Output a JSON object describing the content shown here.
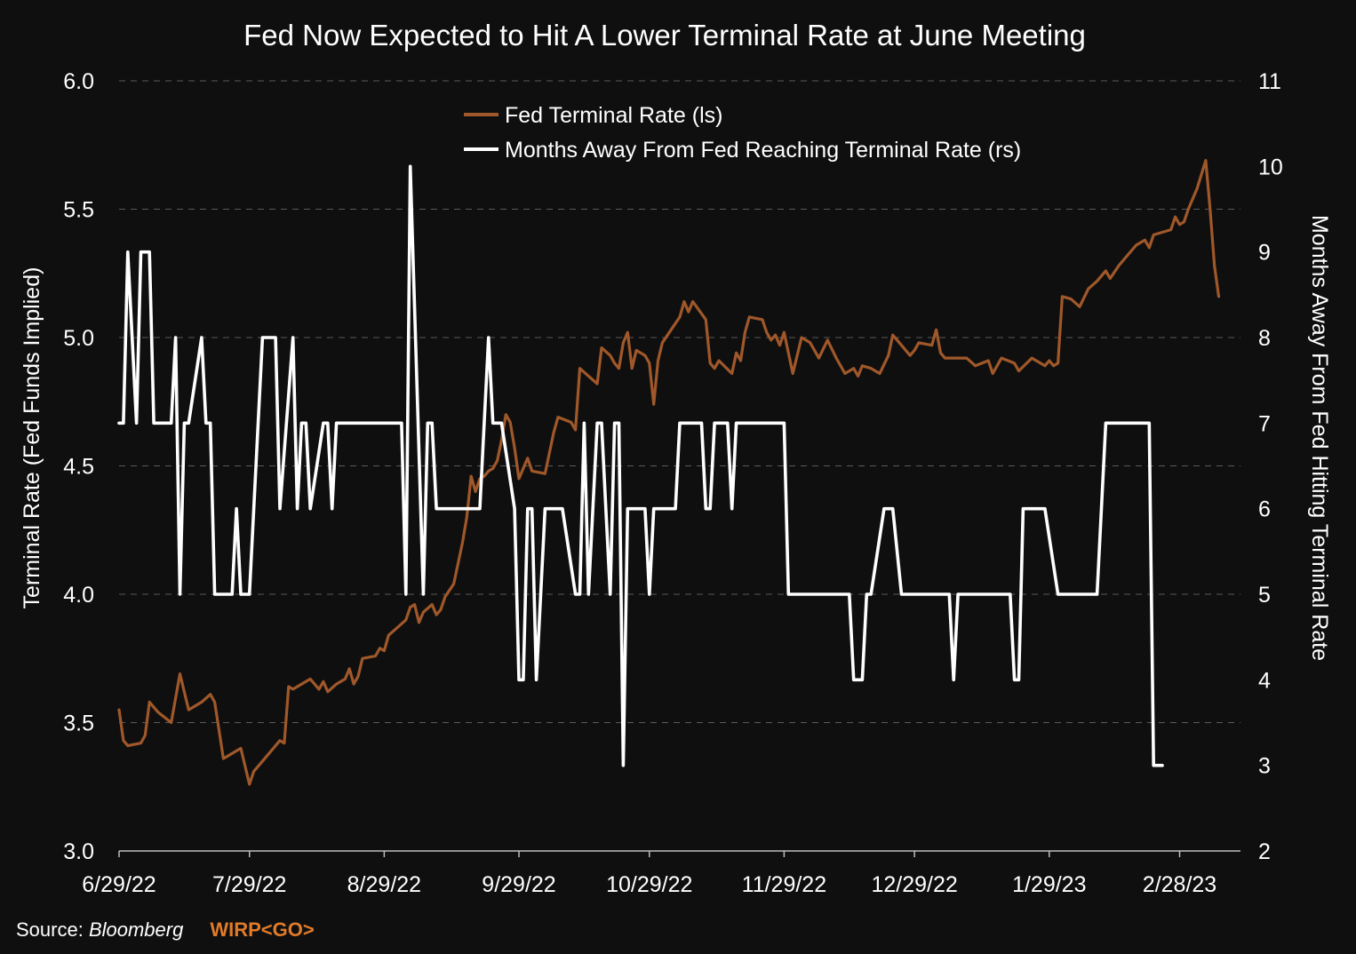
{
  "colors": {
    "background": "#0f0f0f",
    "grid": "#5a5a5a",
    "text": "#ffffff",
    "terminal_rate_line": "#a0582a",
    "months_line": "#ffffff",
    "ticker": "#e07b2a"
  },
  "footer": {
    "source_label": "Source: ",
    "source_name": "Bloomberg",
    "ticker": "WIRP<GO>"
  },
  "chart_data": {
    "type": "line",
    "title": "Fed Now Expected to Hit A Lower Terminal Rate at June Meeting",
    "xlabel": "",
    "ylabel_left": "Terminal Rate (Fed Funds Implied)",
    "ylabel_right": "Months Away From Fed Hitting Terminal Rate",
    "ylim_left": [
      3.0,
      6.0
    ],
    "ylim_right": [
      2,
      11
    ],
    "yticks_left": [
      "3.0",
      "3.5",
      "4.0",
      "4.5",
      "5.0",
      "5.5",
      "6.0"
    ],
    "yticks_right": [
      "2",
      "3",
      "4",
      "5",
      "6",
      "7",
      "8",
      "9",
      "10",
      "11"
    ],
    "x_tick_labels": [
      "6/29/22",
      "7/29/22",
      "8/29/22",
      "9/29/22",
      "10/29/22",
      "11/29/22",
      "12/29/22",
      "1/29/23",
      "2/28/23"
    ],
    "x_tick_days": [
      0,
      30,
      61,
      92,
      122,
      153,
      183,
      214,
      244
    ],
    "x_range_days": [
      0,
      258
    ],
    "grid": "horizontal dashed",
    "legend_position": "top-center",
    "series": [
      {
        "name": "Fed Terminal Rate (ls)",
        "axis": "left",
        "points": [
          [
            0,
            3.55
          ],
          [
            1,
            3.43
          ],
          [
            2,
            3.41
          ],
          [
            5,
            3.42
          ],
          [
            6,
            3.45
          ],
          [
            7,
            3.58
          ],
          [
            9,
            3.54
          ],
          [
            12,
            3.5
          ],
          [
            14,
            3.69
          ],
          [
            16,
            3.55
          ],
          [
            19,
            3.58
          ],
          [
            21,
            3.61
          ],
          [
            22,
            3.58
          ],
          [
            24,
            3.36
          ],
          [
            28,
            3.4
          ],
          [
            30,
            3.26
          ],
          [
            31,
            3.31
          ],
          [
            33,
            3.35
          ],
          [
            35,
            3.39
          ],
          [
            37,
            3.43
          ],
          [
            38,
            3.42
          ],
          [
            39,
            3.64
          ],
          [
            40,
            3.63
          ],
          [
            42,
            3.65
          ],
          [
            44,
            3.67
          ],
          [
            46,
            3.63
          ],
          [
            47,
            3.66
          ],
          [
            48,
            3.62
          ],
          [
            50,
            3.65
          ],
          [
            52,
            3.67
          ],
          [
            53,
            3.71
          ],
          [
            54,
            3.65
          ],
          [
            55,
            3.68
          ],
          [
            56,
            3.75
          ],
          [
            59,
            3.76
          ],
          [
            60,
            3.79
          ],
          [
            61,
            3.78
          ],
          [
            62,
            3.84
          ],
          [
            64,
            3.87
          ],
          [
            66,
            3.9
          ],
          [
            67,
            3.95
          ],
          [
            68,
            3.96
          ],
          [
            69,
            3.89
          ],
          [
            70,
            3.93
          ],
          [
            72,
            3.96
          ],
          [
            73,
            3.92
          ],
          [
            74,
            3.94
          ],
          [
            75,
            3.99
          ],
          [
            77,
            4.04
          ],
          [
            79,
            4.2
          ],
          [
            80,
            4.3
          ],
          [
            81,
            4.46
          ],
          [
            82,
            4.4
          ],
          [
            83,
            4.45
          ],
          [
            84,
            4.46
          ],
          [
            85,
            4.48
          ],
          [
            86,
            4.49
          ],
          [
            87,
            4.52
          ],
          [
            88,
            4.6
          ],
          [
            89,
            4.7
          ],
          [
            90,
            4.67
          ],
          [
            91,
            4.57
          ],
          [
            92,
            4.45
          ],
          [
            94,
            4.53
          ],
          [
            95,
            4.48
          ],
          [
            98,
            4.47
          ],
          [
            100,
            4.63
          ],
          [
            101,
            4.69
          ],
          [
            104,
            4.67
          ],
          [
            105,
            4.64
          ],
          [
            106,
            4.88
          ],
          [
            108,
            4.85
          ],
          [
            110,
            4.82
          ],
          [
            111,
            4.96
          ],
          [
            113,
            4.93
          ],
          [
            114,
            4.9
          ],
          [
            115,
            4.88
          ],
          [
            116,
            4.98
          ],
          [
            117,
            5.02
          ],
          [
            118,
            4.88
          ],
          [
            119,
            4.95
          ],
          [
            121,
            4.93
          ],
          [
            122,
            4.9
          ],
          [
            123,
            4.74
          ],
          [
            124,
            4.91
          ],
          [
            125,
            4.98
          ],
          [
            127,
            5.03
          ],
          [
            129,
            5.08
          ],
          [
            130,
            5.14
          ],
          [
            131,
            5.1
          ],
          [
            132,
            5.14
          ],
          [
            135,
            5.07
          ],
          [
            136,
            4.9
          ],
          [
            137,
            4.88
          ],
          [
            138,
            4.91
          ],
          [
            141,
            4.86
          ],
          [
            142,
            4.94
          ],
          [
            143,
            4.91
          ],
          [
            144,
            5.02
          ],
          [
            145,
            5.08
          ],
          [
            148,
            5.07
          ],
          [
            149,
            5.02
          ],
          [
            150,
            4.99
          ],
          [
            151,
            5.01
          ],
          [
            152,
            4.97
          ],
          [
            153,
            5.02
          ],
          [
            155,
            4.86
          ],
          [
            157,
            5.0
          ],
          [
            159,
            4.98
          ],
          [
            161,
            4.92
          ],
          [
            163,
            4.99
          ],
          [
            165,
            4.92
          ],
          [
            167,
            4.86
          ],
          [
            169,
            4.88
          ],
          [
            170,
            4.85
          ],
          [
            171,
            4.89
          ],
          [
            173,
            4.88
          ],
          [
            175,
            4.86
          ],
          [
            177,
            4.93
          ],
          [
            178,
            5.01
          ],
          [
            180,
            4.97
          ],
          [
            182,
            4.93
          ],
          [
            183,
            4.95
          ],
          [
            184,
            4.98
          ],
          [
            187,
            4.97
          ],
          [
            188,
            5.03
          ],
          [
            189,
            4.94
          ],
          [
            190,
            4.92
          ],
          [
            195,
            4.92
          ],
          [
            197,
            4.89
          ],
          [
            200,
            4.91
          ],
          [
            201,
            4.86
          ],
          [
            203,
            4.92
          ],
          [
            206,
            4.9
          ],
          [
            207,
            4.87
          ],
          [
            210,
            4.92
          ],
          [
            212,
            4.9
          ],
          [
            213,
            4.89
          ],
          [
            214,
            4.91
          ],
          [
            215,
            4.89
          ],
          [
            216,
            4.9
          ],
          [
            217,
            5.16
          ],
          [
            219,
            5.15
          ],
          [
            221,
            5.12
          ],
          [
            223,
            5.19
          ],
          [
            225,
            5.22
          ],
          [
            227,
            5.26
          ],
          [
            228,
            5.23
          ],
          [
            230,
            5.28
          ],
          [
            232,
            5.32
          ],
          [
            234,
            5.36
          ],
          [
            236,
            5.38
          ],
          [
            237,
            5.35
          ],
          [
            238,
            5.4
          ],
          [
            240,
            5.41
          ],
          [
            242,
            5.42
          ],
          [
            243,
            5.47
          ],
          [
            244,
            5.44
          ],
          [
            245,
            5.45
          ],
          [
            246,
            5.5
          ],
          [
            248,
            5.58
          ],
          [
            250,
            5.69
          ],
          [
            251,
            5.5
          ],
          [
            252,
            5.28
          ],
          [
            253,
            5.16
          ]
        ]
      },
      {
        "name": "Months Away From Fed Reaching Terminal Rate (rs)",
        "axis": "right",
        "points": [
          [
            0,
            7
          ],
          [
            1,
            7
          ],
          [
            2,
            9
          ],
          [
            3,
            8
          ],
          [
            4,
            7
          ],
          [
            5,
            9
          ],
          [
            7,
            9
          ],
          [
            8,
            7
          ],
          [
            12,
            7
          ],
          [
            13,
            8
          ],
          [
            14,
            5
          ],
          [
            15,
            7
          ],
          [
            16,
            7
          ],
          [
            19,
            8
          ],
          [
            20,
            7
          ],
          [
            21,
            7
          ],
          [
            22,
            5
          ],
          [
            26,
            5
          ],
          [
            27,
            6
          ],
          [
            28,
            5
          ],
          [
            30,
            5
          ],
          [
            33,
            8
          ],
          [
            36,
            8
          ],
          [
            37,
            6
          ],
          [
            40,
            8
          ],
          [
            41,
            6
          ],
          [
            42,
            7
          ],
          [
            43,
            7
          ],
          [
            44,
            6
          ],
          [
            47,
            7
          ],
          [
            48,
            7
          ],
          [
            49,
            6
          ],
          [
            50,
            7
          ],
          [
            65,
            7
          ],
          [
            66,
            5
          ],
          [
            67,
            10
          ],
          [
            70,
            5
          ],
          [
            71,
            7
          ],
          [
            72,
            7
          ],
          [
            73,
            6
          ],
          [
            83,
            6
          ],
          [
            84,
            7
          ],
          [
            85,
            8
          ],
          [
            86,
            7
          ],
          [
            88,
            7
          ],
          [
            91,
            6
          ],
          [
            92,
            4
          ],
          [
            93,
            4
          ],
          [
            94,
            6
          ],
          [
            95,
            6
          ],
          [
            96,
            4
          ],
          [
            98,
            6
          ],
          [
            102,
            6
          ],
          [
            105,
            5
          ],
          [
            106,
            5
          ],
          [
            107,
            7
          ],
          [
            108,
            5
          ],
          [
            110,
            7
          ],
          [
            111,
            7
          ],
          [
            112,
            6
          ],
          [
            113,
            5
          ],
          [
            114,
            7
          ],
          [
            115,
            7
          ],
          [
            116,
            3
          ],
          [
            117,
            6
          ],
          [
            121,
            6
          ],
          [
            122,
            5
          ],
          [
            123,
            6
          ],
          [
            128,
            6
          ],
          [
            129,
            7
          ],
          [
            134,
            7
          ],
          [
            135,
            6
          ],
          [
            136,
            6
          ],
          [
            137,
            7
          ],
          [
            140,
            7
          ],
          [
            141,
            6
          ],
          [
            142,
            7
          ],
          [
            153,
            7
          ],
          [
            154,
            5
          ],
          [
            168,
            5
          ],
          [
            169,
            4
          ],
          [
            171,
            4
          ],
          [
            172,
            5
          ],
          [
            173,
            5
          ],
          [
            176,
            6
          ],
          [
            178,
            6
          ],
          [
            180,
            5
          ],
          [
            191,
            5
          ],
          [
            192,
            4
          ],
          [
            193,
            5
          ],
          [
            205,
            5
          ],
          [
            206,
            4
          ],
          [
            207,
            4
          ],
          [
            208,
            6
          ],
          [
            213,
            6
          ],
          [
            216,
            5
          ],
          [
            225,
            5
          ],
          [
            227,
            7
          ],
          [
            237,
            7
          ],
          [
            238,
            3
          ],
          [
            240,
            3
          ]
        ]
      }
    ]
  }
}
